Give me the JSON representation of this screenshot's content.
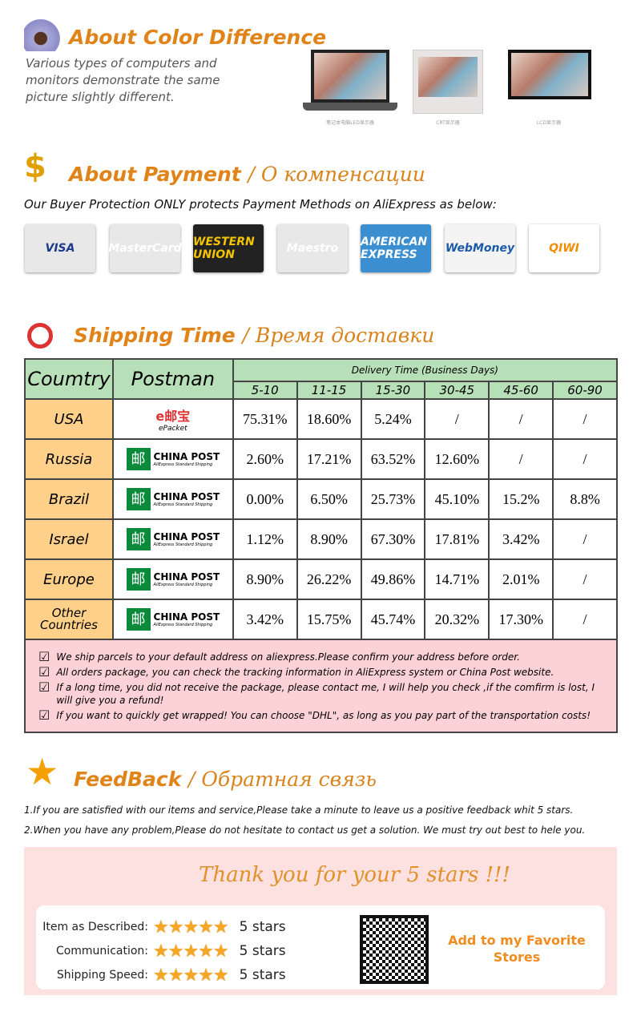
{
  "color_section": {
    "title": "About Color Difference",
    "text": [
      "Various types of computers and",
      "monitors demonstrate the same",
      "picture slightly different."
    ],
    "captions": [
      "笔记本电脑LED显示器",
      "CRT显示器",
      "LCD显示器"
    ]
  },
  "payment_section": {
    "title": "About Payment",
    "title_ru": "/ О компенсации",
    "subtitle": "Our Buyer Protection ONLY protects Payment Methods on AliExpress as below:",
    "methods": [
      {
        "label": "VISA",
        "bg": "#e8e8e8",
        "fg": "#1a3a8a"
      },
      {
        "label": "MasterCard",
        "bg": "#e8e8e8",
        "fg": "#fff"
      },
      {
        "label": "WESTERN UNION",
        "bg": "#222",
        "fg": "#f5c400"
      },
      {
        "label": "Maestro",
        "bg": "#e8e8e8",
        "fg": "#fff"
      },
      {
        "label": "AMERICAN EXPRESS",
        "bg": "#3b8fd0",
        "fg": "#fff"
      },
      {
        "label": "WebMoney",
        "bg": "#f4f4f4",
        "fg": "#1a5aa8"
      },
      {
        "label": "QIWI",
        "bg": "#fff",
        "fg": "#f08c00"
      }
    ]
  },
  "shipping_section": {
    "title": "Shipping Time",
    "title_ru": "/ Время доставки",
    "table": {
      "country_header": "Coumtry",
      "postman_header": "Postman",
      "delivery_header": "Delivery Time (Business Days)",
      "ranges": [
        "5-10",
        "11-15",
        "15-30",
        "30-45",
        "45-60",
        "60-90"
      ],
      "rows": [
        {
          "country": "USA",
          "postman": "epacket",
          "values": [
            "75.31%",
            "18.60%",
            "5.24%",
            "/",
            "/",
            "/"
          ]
        },
        {
          "country": "Russia",
          "postman": "chinapost",
          "values": [
            "2.60%",
            "17.21%",
            "63.52%",
            "12.60%",
            "/",
            "/"
          ]
        },
        {
          "country": "Brazil",
          "postman": "chinapost",
          "values": [
            "0.00%",
            "6.50%",
            "25.73%",
            "45.10%",
            "15.2%",
            "8.8%"
          ]
        },
        {
          "country": "Israel",
          "postman": "chinapost",
          "values": [
            "1.12%",
            "8.90%",
            "67.30%",
            "17.81%",
            "3.42%",
            "/"
          ]
        },
        {
          "country": "Europe",
          "postman": "chinapost",
          "values": [
            "8.90%",
            "26.22%",
            "49.86%",
            "14.71%",
            "2.01%",
            "/"
          ]
        },
        {
          "country": "Other Countries",
          "postman": "chinapost",
          "values": [
            "3.42%",
            "15.75%",
            "45.74%",
            "20.32%",
            "17.30%",
            "/"
          ]
        }
      ],
      "epacket": {
        "logo": "e邮宝",
        "label": "ePacket"
      },
      "chinapost": {
        "name": "CHINA POST",
        "tag": "AliExpress Standard Shipping"
      }
    },
    "notes": [
      "We ship parcels to your default address on aliexpress.Please confirm your address before order.",
      "All orders package, you can check the tracking information in AliExpress system or China Post website.",
      "If a long time, you did not receive the package, please contact me, I will help you check ,if the comfirm is lost, I will give you a refund!",
      "If you want to quickly get wrapped! You can choose \"DHL\", as long as you pay part of the transportation costs!"
    ]
  },
  "feedback_section": {
    "title": "FeedBack",
    "title_ru": "/ Обратная связь",
    "lines": [
      "1.If you are satisfied with our items and service,Please take a minute to leave us a positive feedback whit 5 stars.",
      "2.When you have any problem,Please do not hesitate to contact us get a solution. We must try out best to hele you."
    ],
    "thanks": "Thank you for your 5 stars !!!",
    "ratings": [
      {
        "label": "Item as Described:",
        "stars": 5,
        "text": "5 stars"
      },
      {
        "label": "Communication:",
        "stars": 5,
        "text": "5 stars"
      },
      {
        "label": "Shipping Speed:",
        "stars": 5,
        "text": "5 stars"
      }
    ],
    "favorite": "Add to my Favorite Stores"
  },
  "colors": {
    "accent": "#e0841a",
    "table_header": "#b8e0b8",
    "country_cell": "#ffd08a",
    "notes_bg": "#fcd2d6"
  }
}
